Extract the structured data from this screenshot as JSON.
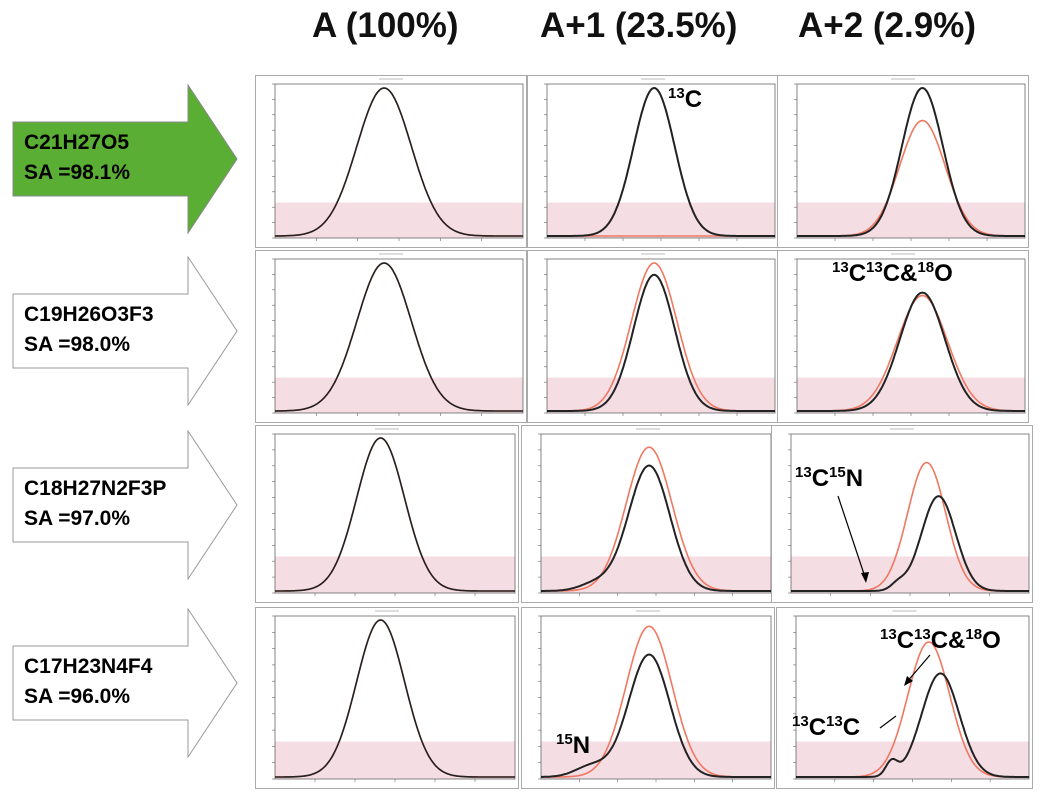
{
  "columns": [
    {
      "label": "A (100%)"
    },
    {
      "label": "A+1 (23.5%)"
    },
    {
      "label": "A+2 (2.9%)"
    }
  ],
  "colors": {
    "highlight_arrow_fill": "#5aae34",
    "plain_arrow_fill": "#ffffff",
    "theoretical_trace": "#f07860",
    "measured_trace": "#222222",
    "noise_band": "#f5dde4"
  },
  "rows": [
    {
      "formula": "C21H27O5",
      "sa": "SA =98.1%",
      "highlighted": true
    },
    {
      "formula": "C19H26O3F3",
      "sa": "SA =98.0%",
      "highlighted": false
    },
    {
      "formula": "C18H27N2F3P",
      "sa": "SA =97.0%",
      "highlighted": false
    },
    {
      "formula": "C17H23N4F4",
      "sa": "SA =96.0%",
      "highlighted": false
    }
  ],
  "annotations": {
    "r1_a1": {
      "iso": "13",
      "el": "C"
    },
    "r2_a2": {
      "i1": "13",
      "e1": "C",
      "i2": "13",
      "e2": "C&",
      "i3": "18",
      "e3": "O"
    },
    "r3_a2": {
      "i1": "13",
      "e1": "C",
      "i2": "15",
      "e2": "N"
    },
    "r4_a1": {
      "iso": "15",
      "el": "N"
    },
    "r4_a2_top": {
      "i1": "13",
      "e1": "C",
      "i2": "13",
      "e2": "C&",
      "i3": "18",
      "e3": "O"
    },
    "r4_a2_bottom": {
      "i1": "13",
      "e1": "C",
      "i2": "13",
      "e2": "C"
    }
  }
}
